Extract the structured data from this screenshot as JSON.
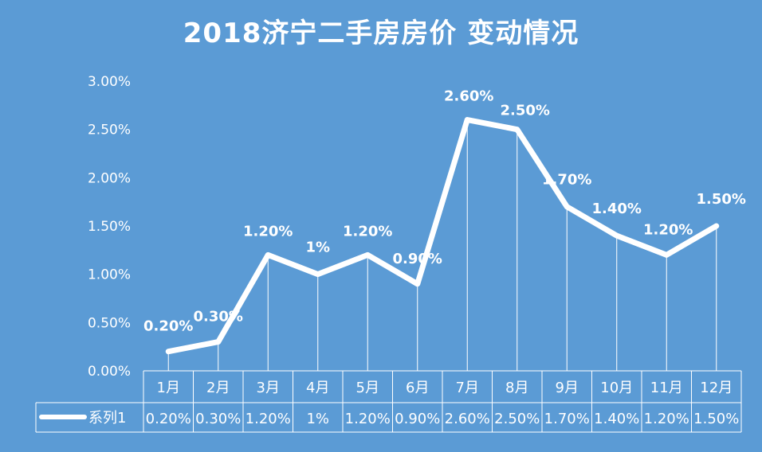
{
  "colors": {
    "background": "#5b9bd5",
    "line": "#ffffff",
    "text": "#ffffff"
  },
  "chart_data": {
    "type": "line",
    "title": "2018济宁二手房房价 变动情况",
    "categories": [
      "1月",
      "2月",
      "3月",
      "4月",
      "5月",
      "6月",
      "7月",
      "8月",
      "9月",
      "10月",
      "11月",
      "12月"
    ],
    "series": [
      {
        "name": "系列1",
        "values": [
          0.2,
          0.3,
          1.2,
          1.0,
          1.2,
          0.9,
          2.6,
          2.5,
          1.7,
          1.4,
          1.2,
          1.5
        ],
        "labels": [
          "0.20%",
          "0.30%",
          "1.20%",
          "1%",
          "1.20%",
          "0.90%",
          "2.60%",
          "2.50%",
          "1.70%",
          "1.40%",
          "1.20%",
          "1.50%"
        ]
      }
    ],
    "y_ticks": [
      "0.00%",
      "0.50%",
      "1.00%",
      "1.50%",
      "2.00%",
      "2.50%",
      "3.00%"
    ],
    "ylim": [
      0,
      3
    ],
    "grid": false,
    "legend": "data table below chart"
  }
}
